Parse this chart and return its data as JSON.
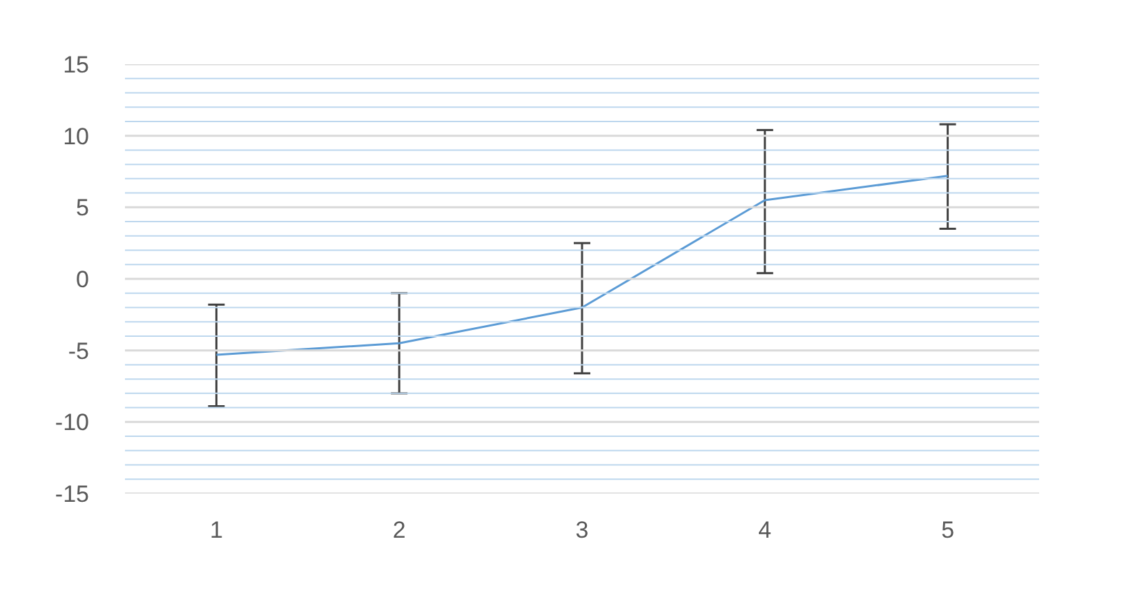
{
  "chart_data": {
    "type": "line",
    "categories": [
      "1",
      "2",
      "3",
      "4",
      "5"
    ],
    "series": [
      {
        "color": "#5b9bd5",
        "values": [
          -5.3,
          -4.5,
          -2.0,
          5.5,
          7.2
        ],
        "errors": [
          [
            -8.9,
            -1.8
          ],
          [
            -8.0,
            -1.0
          ],
          [
            -6.6,
            2.5
          ],
          [
            0.4,
            10.4
          ],
          [
            3.5,
            10.8
          ]
        ]
      }
    ],
    "ylim": [
      -15,
      15
    ],
    "yticks": [
      -15,
      {
        "value": -14,
        "label": null
      },
      {
        "value": -13,
        "label": null
      },
      {
        "value": -12,
        "label": null
      },
      {
        "value": -11,
        "label": null
      },
      -10,
      {
        "value": -9,
        "label": null
      },
      {
        "value": -8,
        "label": null
      },
      {
        "value": -7,
        "label": null
      },
      {
        "value": -6,
        "label": null
      },
      -5,
      {
        "value": -4,
        "label": null
      },
      {
        "value": -3,
        "label": null
      },
      {
        "value": -2,
        "label": null
      },
      {
        "value": -1,
        "label": null
      },
      0,
      {
        "value": 1,
        "label": null
      },
      {
        "value": 2,
        "label": null
      },
      {
        "value": 3,
        "label": null
      },
      {
        "value": 4,
        "label": null
      },
      5,
      {
        "value": 6,
        "label": null
      },
      {
        "value": 7,
        "label": null
      },
      {
        "value": 8,
        "label": null
      },
      {
        "value": 9,
        "label": null
      },
      10,
      {
        "value": 11,
        "label": null
      },
      {
        "value": 12,
        "label": null
      },
      {
        "value": 13,
        "label": null
      },
      {
        "value": 14,
        "label": null
      },
      15
    ],
    "grid": "y",
    "marker": "none",
    "line_style": "solid"
  }
}
